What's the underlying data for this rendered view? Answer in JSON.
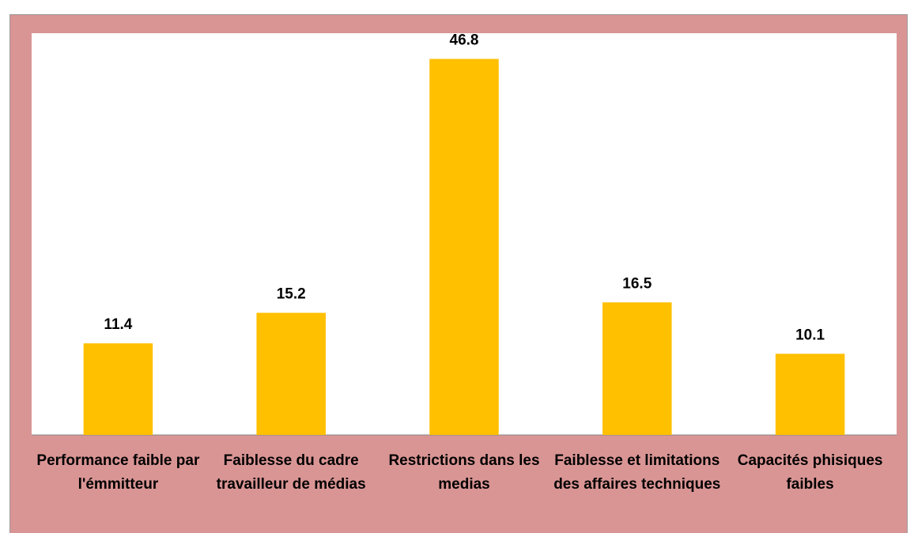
{
  "chart_data": {
    "type": "bar",
    "categories": [
      "Performance faible par l'émmitteur",
      "Faiblesse du cadre travailleur de médias",
      "Restrictions dans les medias",
      "Faiblesse et limitations des affaires techniques",
      "Capacités phisiques faibles"
    ],
    "values": [
      11.4,
      15.2,
      46.8,
      16.5,
      10.1
    ],
    "color": "#ffc000",
    "ylim": [
      0,
      50
    ]
  }
}
